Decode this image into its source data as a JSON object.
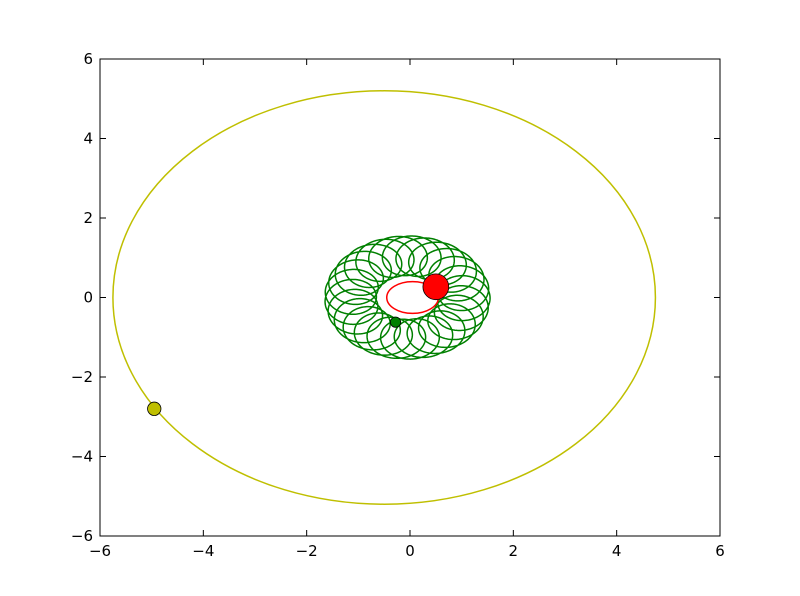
{
  "chart_data": {
    "type": "line",
    "title": "",
    "xlabel": "",
    "ylabel": "",
    "xlim": [
      -6,
      6
    ],
    "ylim": [
      -6,
      6
    ],
    "grid": false,
    "xticks": [
      -6,
      -4,
      -2,
      0,
      2,
      4,
      6
    ],
    "yticks": [
      -6,
      -4,
      -2,
      0,
      2,
      4,
      6
    ],
    "xtick_labels": [
      "−6",
      "−4",
      "−2",
      "0",
      "2",
      "4",
      "6"
    ],
    "ytick_labels": [
      "−6",
      "−4",
      "−2",
      "0",
      "2",
      "4",
      "6"
    ],
    "series": [
      {
        "kind": "ellipse_orbit",
        "color": "#bfbf00",
        "center": [
          -0.5,
          0.0
        ],
        "semi_axes": [
          5.25,
          5.2
        ],
        "marker": {
          "x": -4.95,
          "y": -2.8,
          "radius": 0.13,
          "color": "#bfbf00"
        }
      },
      {
        "kind": "precessing_orbit",
        "color": "#008000",
        "center": [
          -0.05,
          0.0
        ],
        "outer_semi_axes": [
          1.6,
          1.55
        ],
        "inner_semi_axes": [
          0.6,
          0.55
        ],
        "loops": 26,
        "marker": {
          "x": -0.28,
          "y": -0.62,
          "radius": 0.1,
          "color": "#008000"
        }
      },
      {
        "kind": "ellipse_orbit",
        "color": "#ff0000",
        "center": [
          0.05,
          0.0
        ],
        "semi_axes": [
          0.5,
          0.4
        ],
        "marker": {
          "x": 0.5,
          "y": 0.27,
          "radius": 0.25,
          "color": "#ff0000"
        }
      }
    ]
  }
}
